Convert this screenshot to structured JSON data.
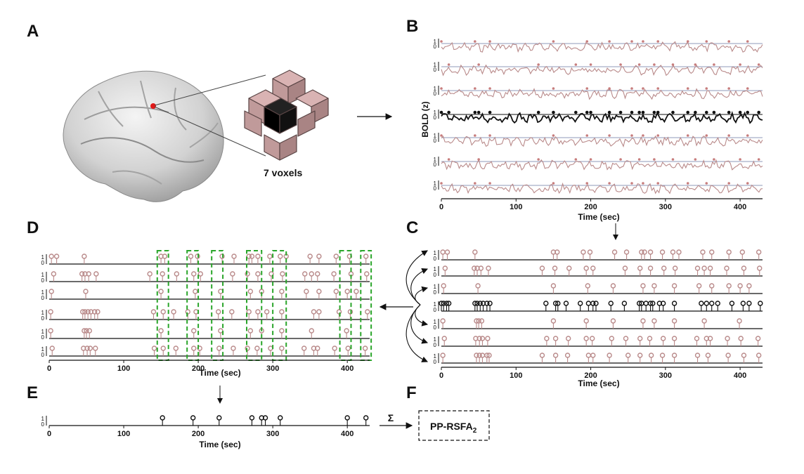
{
  "panels": {
    "a": "A",
    "b": "B",
    "c": "C",
    "d": "D",
    "e": "E",
    "f": "F"
  },
  "voxel_label": "7 voxels",
  "bold_ylabel": "BOLD (z)",
  "time_label": "Time (sec)",
  "x_ticks": [
    "0",
    "100",
    "200",
    "300",
    "400"
  ],
  "y_ticks": [
    "1",
    "0"
  ],
  "sum_symbol": "Σ",
  "result_box": "PP-RSFA",
  "result_subscript": "2",
  "colors": {
    "voxel": "#b98a8a",
    "center": "#111111",
    "highlight": "#2aa52a",
    "neutral": "#8f98b8"
  },
  "chart_data": [
    {
      "type": "line",
      "title": "",
      "xlabel": "Time (sec)",
      "ylabel": "BOLD (z)",
      "xlim": [
        0,
        430
      ],
      "series_count": 7,
      "center_series_index": 3,
      "event_times": [
        0,
        10,
        45,
        50,
        65,
        130,
        150,
        180,
        195,
        200,
        225,
        240,
        255,
        265,
        270,
        285,
        290,
        310,
        330,
        340,
        355,
        365,
        385,
        400,
        410,
        425
      ]
    },
    {
      "type": "scatter",
      "title": "",
      "xlabel": "Time (sec)",
      "xlim": [
        0,
        430
      ],
      "series": [
        {
          "events": [
            2,
            8,
            45,
            150,
            155,
            190,
            199,
            232,
            248,
            268,
            272,
            280,
            296,
            310,
            318,
            350,
            362,
            385,
            403,
            425
          ]
        },
        {
          "events": [
            5,
            44,
            48,
            53,
            63,
            135,
            152,
            171,
            194,
            203,
            246,
            266,
            280,
            298,
            313,
            343,
            352,
            360,
            382,
            405,
            426
          ]
        },
        {
          "events": [
            3,
            49,
            150,
            196,
            230,
            270,
            285,
            312,
            345,
            362,
            385,
            400,
            412
          ]
        },
        {
          "events": [
            0,
            3,
            7,
            10,
            45,
            48,
            52,
            56,
            61,
            65,
            140,
            153,
            156,
            167,
            186,
            197,
            203,
            207,
            227,
            245,
            265,
            268,
            274,
            280,
            283,
            292,
            297,
            312,
            348,
            355,
            362,
            370,
            389,
            404,
            412,
            427
          ]
        },
        {
          "events": [
            2,
            47,
            50,
            54,
            150,
            194,
            230,
            270,
            285,
            312,
            352,
            399
          ]
        },
        {
          "events": [
            4,
            46,
            51,
            55,
            62,
            141,
            153,
            170,
            194,
            202,
            228,
            247,
            266,
            279,
            297,
            312,
            342,
            355,
            360,
            383,
            401,
            424
          ]
        },
        {
          "events": [
            2,
            47,
            51,
            55,
            61,
            64,
            135,
            153,
            169,
            197,
            203,
            225,
            250,
            266,
            281,
            296,
            312,
            343,
            357,
            384,
            405,
            425
          ]
        }
      ]
    },
    {
      "type": "scatter",
      "title": "",
      "xlabel": "Time (sec)",
      "xlim": [
        0,
        430
      ],
      "series": [
        {
          "events": [
            3,
            10,
            47,
            150,
            155,
            190,
            199,
            232,
            248,
            268,
            272,
            280,
            296,
            310,
            318,
            350,
            362,
            385,
            403,
            425
          ]
        },
        {
          "events": [
            6,
            44,
            48,
            53,
            63,
            135,
            152,
            171,
            194,
            203,
            246,
            266,
            280,
            298,
            313,
            343,
            352,
            360,
            382,
            405,
            426
          ]
        },
        {
          "events": [
            3,
            49,
            150,
            196,
            230,
            270,
            285,
            312,
            345,
            362,
            385,
            400,
            412
          ]
        },
        {
          "events": [
            2,
            45,
            48,
            52,
            56,
            61,
            65,
            140,
            153,
            167,
            186,
            197,
            227,
            245,
            268,
            280,
            292,
            312,
            355,
            362,
            389,
            404,
            427
          ]
        },
        {
          "events": [
            2,
            47,
            50,
            54,
            150,
            194,
            230,
            270,
            285,
            312,
            352,
            399
          ]
        },
        {
          "events": [
            4,
            46,
            51,
            55,
            62,
            141,
            153,
            170,
            194,
            202,
            228,
            247,
            266,
            279,
            297,
            312,
            342,
            355,
            360,
            383,
            401,
            424
          ]
        }
      ],
      "highlight_windows": [
        [
          145,
          160
        ],
        [
          185,
          200
        ],
        [
          218,
          233
        ],
        [
          265,
          285
        ],
        [
          300,
          318
        ],
        [
          390,
          405
        ],
        [
          418,
          432
        ]
      ]
    },
    {
      "type": "scatter",
      "title": "",
      "xlabel": "Time (sec)",
      "xlim": [
        0,
        430
      ],
      "series": [
        {
          "events": [
            152,
            193,
            228,
            272,
            285,
            290,
            310,
            400,
            425
          ]
        }
      ]
    }
  ]
}
